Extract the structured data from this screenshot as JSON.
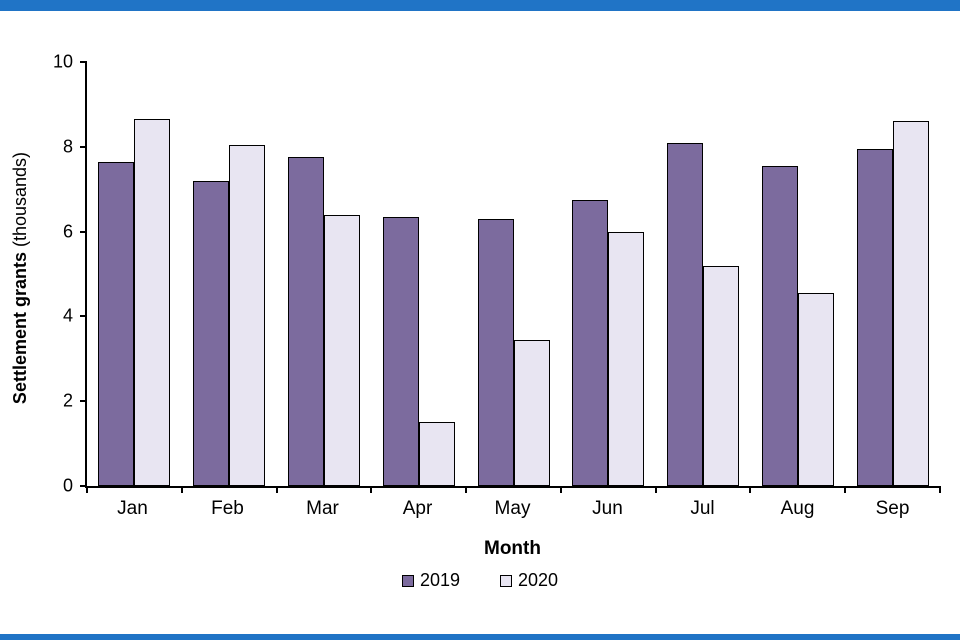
{
  "page": {
    "top_bar_color": "#2074c6",
    "bottom_bar_color": "#2074c6",
    "background": "#ffffff"
  },
  "chart_data": {
    "type": "bar",
    "title": "",
    "categories": [
      "Jan",
      "Feb",
      "Mar",
      "Apr",
      "May",
      "Jun",
      "Jul",
      "Aug",
      "Sep"
    ],
    "series": [
      {
        "name": "2019",
        "color": "#7c6b9e",
        "values": [
          7.65,
          7.2,
          7.75,
          6.35,
          6.3,
          6.75,
          8.1,
          7.55,
          7.95
        ]
      },
      {
        "name": "2020",
        "color": "#e8e5f2",
        "values": [
          8.65,
          8.05,
          6.4,
          1.5,
          3.45,
          6.0,
          5.2,
          4.55,
          8.6
        ]
      }
    ],
    "xlabel": "Month",
    "ylabel_bold": "Settlement grants",
    "ylabel_normal": " (thousands)",
    "ylim": [
      0,
      10
    ],
    "yticks": [
      0,
      2,
      4,
      6,
      8,
      10
    ],
    "grid": false,
    "legend_position": "bottom",
    "legend_labels": [
      "2019",
      "2020"
    ]
  }
}
